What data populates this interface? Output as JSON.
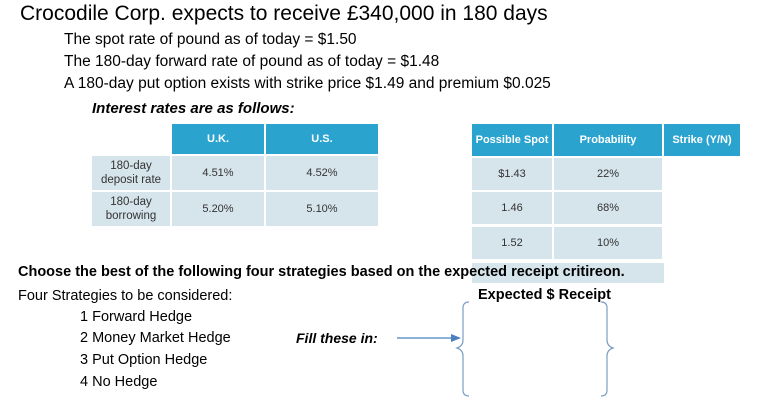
{
  "title": "Crocodile Corp. expects to receive £340,000 in 180 days",
  "facts": [
    "The spot rate of pound as of today = $1.50",
    "The 180-day forward rate of pound as of today = $1.48",
    "A 180-day put option exists with strike price $1.49 and premium $0.025"
  ],
  "interest_heading": "Interest rates are as follows:",
  "rates_table": {
    "headers": [
      "U.K.",
      "U.S."
    ],
    "rows": [
      {
        "label": "180-day deposit rate",
        "uk": "4.51%",
        "us": "4.52%"
      },
      {
        "label": "180-day borrowing",
        "uk": "5.20%",
        "us": "5.10%"
      }
    ]
  },
  "spot_table": {
    "headers": [
      "Possible Spot",
      "Probability",
      "Strike (Y/N)"
    ],
    "rows": [
      {
        "spot": "$1.43",
        "prob": "22%"
      },
      {
        "spot": "1.46",
        "prob": "68%"
      },
      {
        "spot": "1.52",
        "prob": "10%"
      }
    ]
  },
  "choose_text": "Choose the best of the following four strategies based on the expected receipt critireon.",
  "strategies_heading": "Four Strategies to be considered:",
  "expected_heading": "Expected $ Receipt",
  "strategies": [
    "1 Forward Hedge",
    "2 Money Market Hedge",
    "3 Put Option Hedge",
    "4 No Hedge"
  ],
  "fill_label": "Fill these in:",
  "colors": {
    "header": "#2aa4cf",
    "cell": "#d6e4ec",
    "arrow": "#4a7fc1"
  }
}
